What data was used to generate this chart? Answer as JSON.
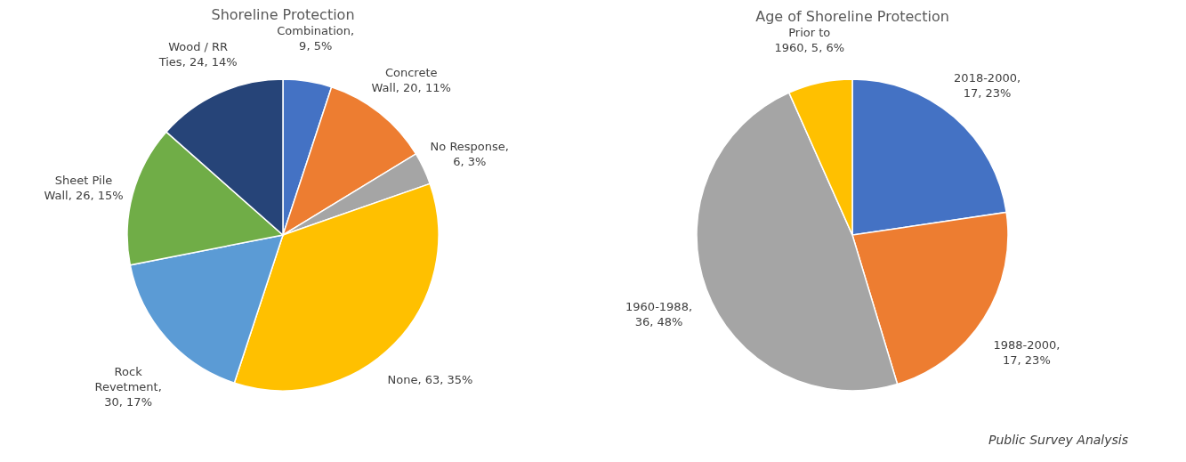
{
  "chart_data": [
    {
      "type": "pie",
      "title": "Shoreline Protection",
      "categories": [
        "Combination",
        "Concrete Wall",
        "No Response",
        "None",
        "Rock Revetment",
        "Sheet Pile Wall",
        "Wood / RR Ties"
      ],
      "values": [
        9,
        20,
        6,
        63,
        30,
        26,
        24
      ],
      "colors": [
        "#4472c4",
        "#ed7d31",
        "#a5a5a5",
        "#ffc000",
        "#5b9bd5",
        "#70ad47",
        "#264478"
      ],
      "value_labels": [
        ", 9, 5%",
        ", 20, 11%",
        ", 6, 3%",
        ", 63, 35%",
        ", 30, 17%",
        ", 26, 15%",
        ", 24, 14%"
      ],
      "legend": false
    },
    {
      "type": "pie",
      "title": "Age of Shoreline Protection",
      "categories": [
        "2018-2000",
        "1988-2000",
        "1960-1988",
        "Prior to 1960"
      ],
      "values": [
        17,
        17,
        36,
        5
      ],
      "colors": [
        "#4472c4",
        "#ed7d31",
        "#a5a5a5",
        "#ffc000"
      ],
      "value_labels": [
        ", 17, 23%",
        ", 17, 23%",
        ", 36, 48%",
        ", 5, 6%"
      ],
      "legend": false,
      "annotations": [
        "Public Survey Analysis"
      ]
    }
  ]
}
